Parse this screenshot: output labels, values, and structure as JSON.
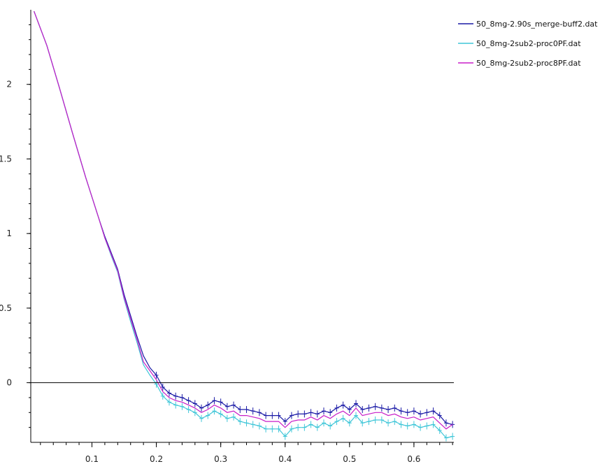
{
  "chart_data": {
    "type": "line",
    "title": "",
    "xlabel": "",
    "ylabel": "",
    "xlim": [
      0.005,
      0.662
    ],
    "ylim": [
      -0.4,
      2.5
    ],
    "x_ticks": [
      0.1,
      0.2,
      0.3,
      0.4,
      0.5,
      0.6
    ],
    "x_tick_labels": [
      "0.1",
      "0.2",
      "0.3",
      "0.4",
      "0.5",
      "0.6"
    ],
    "y_ticks": [
      0,
      0.5,
      1,
      1.5,
      2
    ],
    "y_tick_labels": [
      "0",
      "0.5",
      "1",
      "1.5",
      "2"
    ],
    "zero_line": true,
    "grid": false,
    "legend_position": "top-right",
    "series": [
      {
        "name": "50_8mg-2.90s_merge-buff2.dat",
        "color": "#1a1aa6",
        "error_bars": true,
        "points": [
          [
            0.01,
            2.49
          ],
          [
            0.03,
            2.26
          ],
          [
            0.05,
            1.97
          ],
          [
            0.07,
            1.67
          ],
          [
            0.09,
            1.38
          ],
          [
            0.11,
            1.11
          ],
          [
            0.12,
            0.98
          ],
          [
            0.13,
            0.87
          ],
          [
            0.14,
            0.76
          ],
          [
            0.15,
            0.59
          ],
          [
            0.16,
            0.45
          ],
          [
            0.17,
            0.31
          ],
          [
            0.18,
            0.18
          ],
          [
            0.19,
            0.1
          ],
          [
            0.2,
            0.05
          ],
          [
            0.21,
            -0.03
          ],
          [
            0.22,
            -0.07
          ],
          [
            0.23,
            -0.09
          ],
          [
            0.24,
            -0.1
          ],
          [
            0.25,
            -0.12
          ],
          [
            0.26,
            -0.14
          ],
          [
            0.27,
            -0.17
          ],
          [
            0.28,
            -0.15
          ],
          [
            0.29,
            -0.12
          ],
          [
            0.3,
            -0.13
          ],
          [
            0.31,
            -0.16
          ],
          [
            0.32,
            -0.15
          ],
          [
            0.33,
            -0.18
          ],
          [
            0.34,
            -0.18
          ],
          [
            0.35,
            -0.19
          ],
          [
            0.36,
            -0.2
          ],
          [
            0.37,
            -0.22
          ],
          [
            0.38,
            -0.22
          ],
          [
            0.39,
            -0.22
          ],
          [
            0.4,
            -0.26
          ],
          [
            0.41,
            -0.22
          ],
          [
            0.42,
            -0.21
          ],
          [
            0.43,
            -0.21
          ],
          [
            0.44,
            -0.2
          ],
          [
            0.45,
            -0.21
          ],
          [
            0.46,
            -0.19
          ],
          [
            0.47,
            -0.2
          ],
          [
            0.48,
            -0.17
          ],
          [
            0.49,
            -0.15
          ],
          [
            0.5,
            -0.18
          ],
          [
            0.51,
            -0.14
          ],
          [
            0.52,
            -0.18
          ],
          [
            0.53,
            -0.17
          ],
          [
            0.54,
            -0.16
          ],
          [
            0.55,
            -0.17
          ],
          [
            0.56,
            -0.18
          ],
          [
            0.57,
            -0.17
          ],
          [
            0.58,
            -0.19
          ],
          [
            0.59,
            -0.2
          ],
          [
            0.6,
            -0.19
          ],
          [
            0.61,
            -0.21
          ],
          [
            0.62,
            -0.2
          ],
          [
            0.63,
            -0.19
          ],
          [
            0.64,
            -0.22
          ],
          [
            0.65,
            -0.27
          ],
          [
            0.66,
            -0.28
          ]
        ]
      },
      {
        "name": "50_8mg-2sub2-proc0PF.dat",
        "color": "#3fc6d8",
        "error_bars": true,
        "points": [
          [
            0.01,
            2.49
          ],
          [
            0.03,
            2.26
          ],
          [
            0.05,
            1.97
          ],
          [
            0.07,
            1.67
          ],
          [
            0.09,
            1.38
          ],
          [
            0.11,
            1.11
          ],
          [
            0.12,
            0.97
          ],
          [
            0.13,
            0.85
          ],
          [
            0.14,
            0.74
          ],
          [
            0.15,
            0.56
          ],
          [
            0.16,
            0.41
          ],
          [
            0.17,
            0.27
          ],
          [
            0.18,
            0.12
          ],
          [
            0.19,
            0.05
          ],
          [
            0.2,
            -0.01
          ],
          [
            0.21,
            -0.09
          ],
          [
            0.22,
            -0.13
          ],
          [
            0.23,
            -0.15
          ],
          [
            0.24,
            -0.16
          ],
          [
            0.25,
            -0.18
          ],
          [
            0.26,
            -0.2
          ],
          [
            0.27,
            -0.24
          ],
          [
            0.28,
            -0.22
          ],
          [
            0.29,
            -0.19
          ],
          [
            0.3,
            -0.21
          ],
          [
            0.31,
            -0.24
          ],
          [
            0.32,
            -0.23
          ],
          [
            0.33,
            -0.26
          ],
          [
            0.34,
            -0.27
          ],
          [
            0.35,
            -0.28
          ],
          [
            0.36,
            -0.29
          ],
          [
            0.37,
            -0.31
          ],
          [
            0.38,
            -0.31
          ],
          [
            0.39,
            -0.31
          ],
          [
            0.4,
            -0.36
          ],
          [
            0.41,
            -0.31
          ],
          [
            0.42,
            -0.3
          ],
          [
            0.43,
            -0.3
          ],
          [
            0.44,
            -0.28
          ],
          [
            0.45,
            -0.3
          ],
          [
            0.46,
            -0.27
          ],
          [
            0.47,
            -0.29
          ],
          [
            0.48,
            -0.26
          ],
          [
            0.49,
            -0.24
          ],
          [
            0.5,
            -0.27
          ],
          [
            0.51,
            -0.22
          ],
          [
            0.52,
            -0.27
          ],
          [
            0.53,
            -0.26
          ],
          [
            0.54,
            -0.25
          ],
          [
            0.55,
            -0.25
          ],
          [
            0.56,
            -0.27
          ],
          [
            0.57,
            -0.26
          ],
          [
            0.58,
            -0.28
          ],
          [
            0.59,
            -0.29
          ],
          [
            0.6,
            -0.28
          ],
          [
            0.61,
            -0.3
          ],
          [
            0.62,
            -0.29
          ],
          [
            0.63,
            -0.28
          ],
          [
            0.64,
            -0.32
          ],
          [
            0.65,
            -0.37
          ],
          [
            0.66,
            -0.36
          ]
        ]
      },
      {
        "name": "50_8mg-2sub2-proc8PF.dat",
        "color": "#c81ec8",
        "error_bars": false,
        "points": [
          [
            0.01,
            2.49
          ],
          [
            0.03,
            2.26
          ],
          [
            0.05,
            1.97
          ],
          [
            0.07,
            1.67
          ],
          [
            0.09,
            1.38
          ],
          [
            0.11,
            1.11
          ],
          [
            0.12,
            0.97
          ],
          [
            0.13,
            0.86
          ],
          [
            0.14,
            0.75
          ],
          [
            0.15,
            0.57
          ],
          [
            0.16,
            0.43
          ],
          [
            0.17,
            0.29
          ],
          [
            0.18,
            0.14
          ],
          [
            0.19,
            0.08
          ],
          [
            0.2,
            0.02
          ],
          [
            0.21,
            -0.06
          ],
          [
            0.22,
            -0.1
          ],
          [
            0.23,
            -0.12
          ],
          [
            0.24,
            -0.13
          ],
          [
            0.25,
            -0.15
          ],
          [
            0.26,
            -0.17
          ],
          [
            0.27,
            -0.2
          ],
          [
            0.28,
            -0.18
          ],
          [
            0.29,
            -0.15
          ],
          [
            0.3,
            -0.17
          ],
          [
            0.31,
            -0.2
          ],
          [
            0.32,
            -0.19
          ],
          [
            0.33,
            -0.22
          ],
          [
            0.34,
            -0.22
          ],
          [
            0.35,
            -0.23
          ],
          [
            0.36,
            -0.24
          ],
          [
            0.37,
            -0.26
          ],
          [
            0.38,
            -0.26
          ],
          [
            0.39,
            -0.26
          ],
          [
            0.4,
            -0.3
          ],
          [
            0.41,
            -0.26
          ],
          [
            0.42,
            -0.25
          ],
          [
            0.43,
            -0.25
          ],
          [
            0.44,
            -0.23
          ],
          [
            0.45,
            -0.25
          ],
          [
            0.46,
            -0.22
          ],
          [
            0.47,
            -0.24
          ],
          [
            0.48,
            -0.21
          ],
          [
            0.49,
            -0.19
          ],
          [
            0.5,
            -0.22
          ],
          [
            0.51,
            -0.17
          ],
          [
            0.52,
            -0.22
          ],
          [
            0.53,
            -0.21
          ],
          [
            0.54,
            -0.2
          ],
          [
            0.55,
            -0.2
          ],
          [
            0.56,
            -0.22
          ],
          [
            0.57,
            -0.21
          ],
          [
            0.58,
            -0.23
          ],
          [
            0.59,
            -0.24
          ],
          [
            0.6,
            -0.23
          ],
          [
            0.61,
            -0.25
          ],
          [
            0.62,
            -0.24
          ],
          [
            0.63,
            -0.23
          ],
          [
            0.64,
            -0.27
          ],
          [
            0.65,
            -0.31
          ],
          [
            0.66,
            -0.28
          ]
        ]
      }
    ]
  }
}
